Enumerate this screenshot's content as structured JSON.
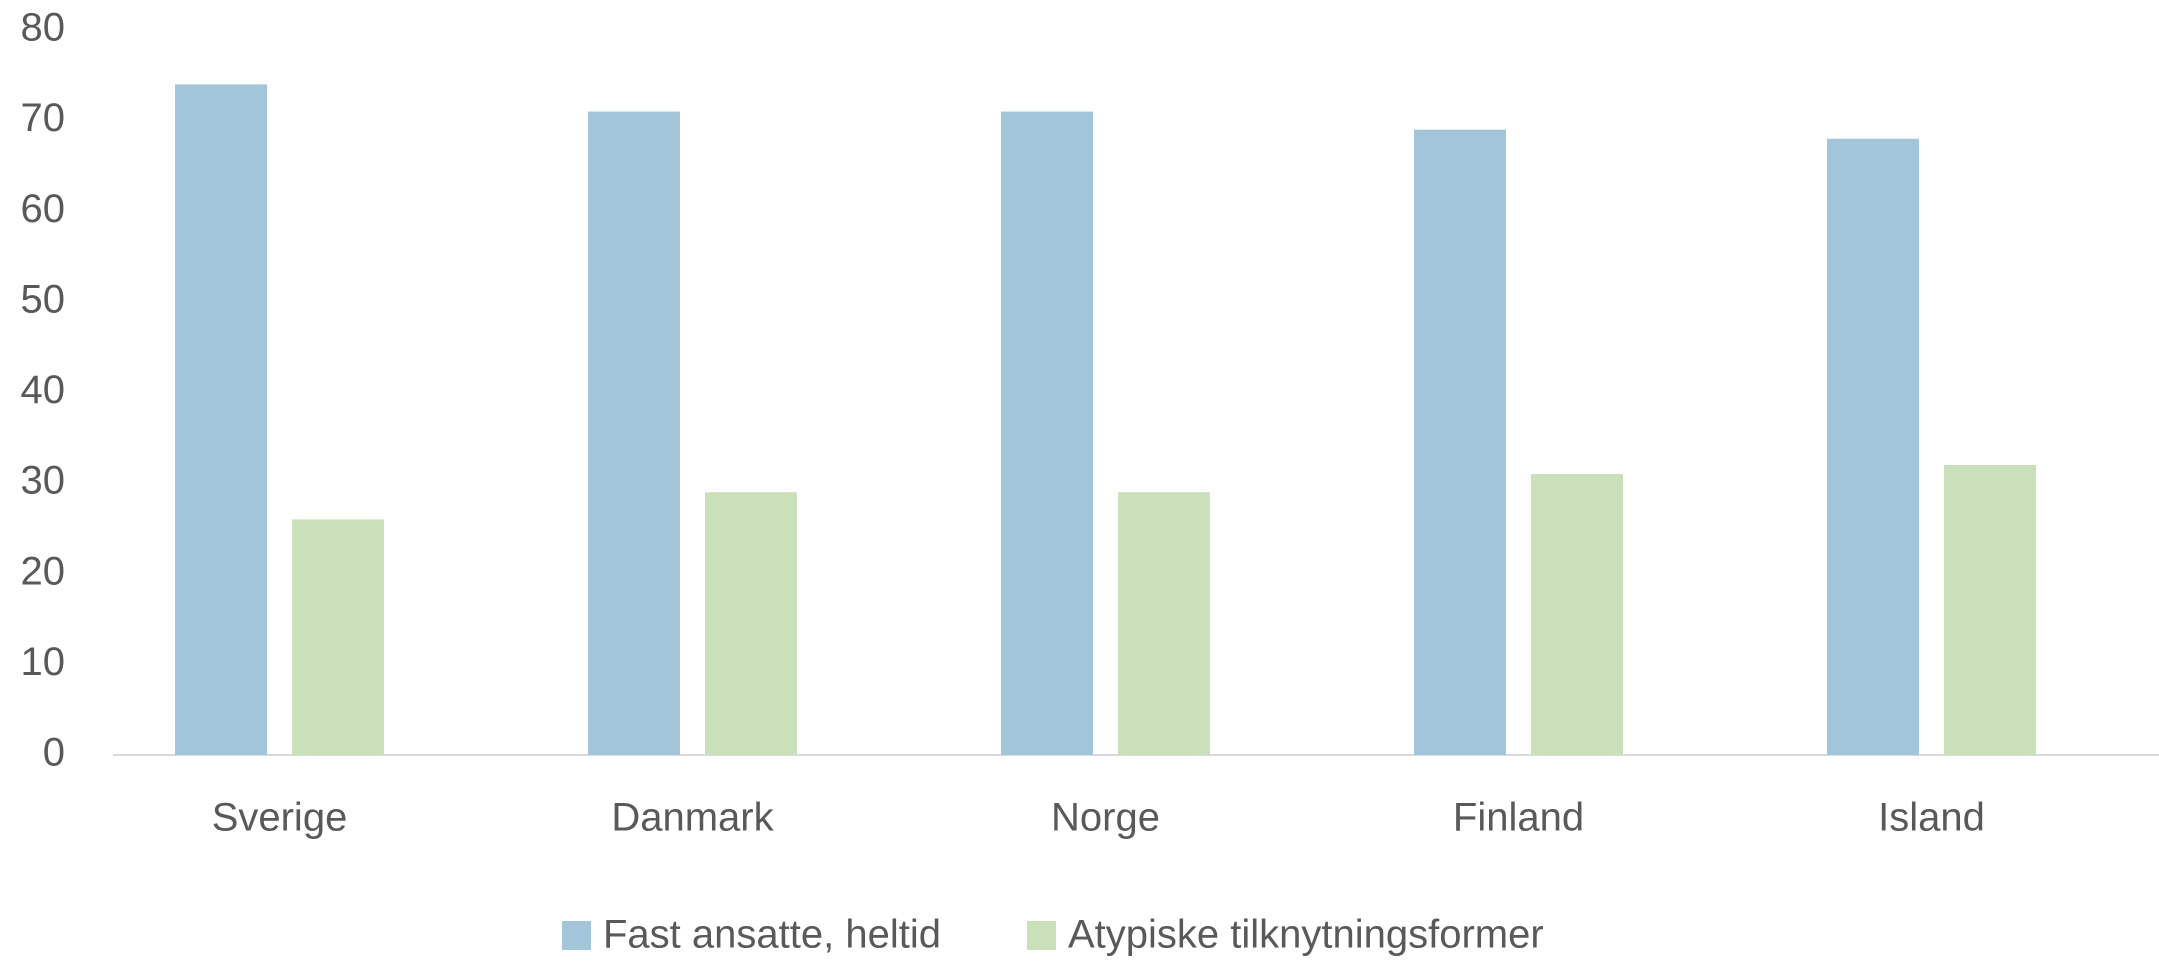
{
  "chart_data": {
    "type": "bar",
    "categories": [
      "Sverige",
      "Danmark",
      "Norge",
      "Finland",
      "Island"
    ],
    "series": [
      {
        "name": "Fast ansatte, heltid",
        "color": "#a3c5d9",
        "values": [
          74,
          71,
          71,
          69,
          68
        ]
      },
      {
        "name": "Atypiske tilknytningsformer",
        "color": "#c9e0bb",
        "values": [
          26,
          29,
          29,
          31,
          32
        ]
      }
    ],
    "ylim": [
      0,
      80
    ],
    "yticks": [
      0,
      10,
      20,
      30,
      40,
      50,
      60,
      70,
      80
    ],
    "grid": false,
    "legend": "bottom"
  }
}
